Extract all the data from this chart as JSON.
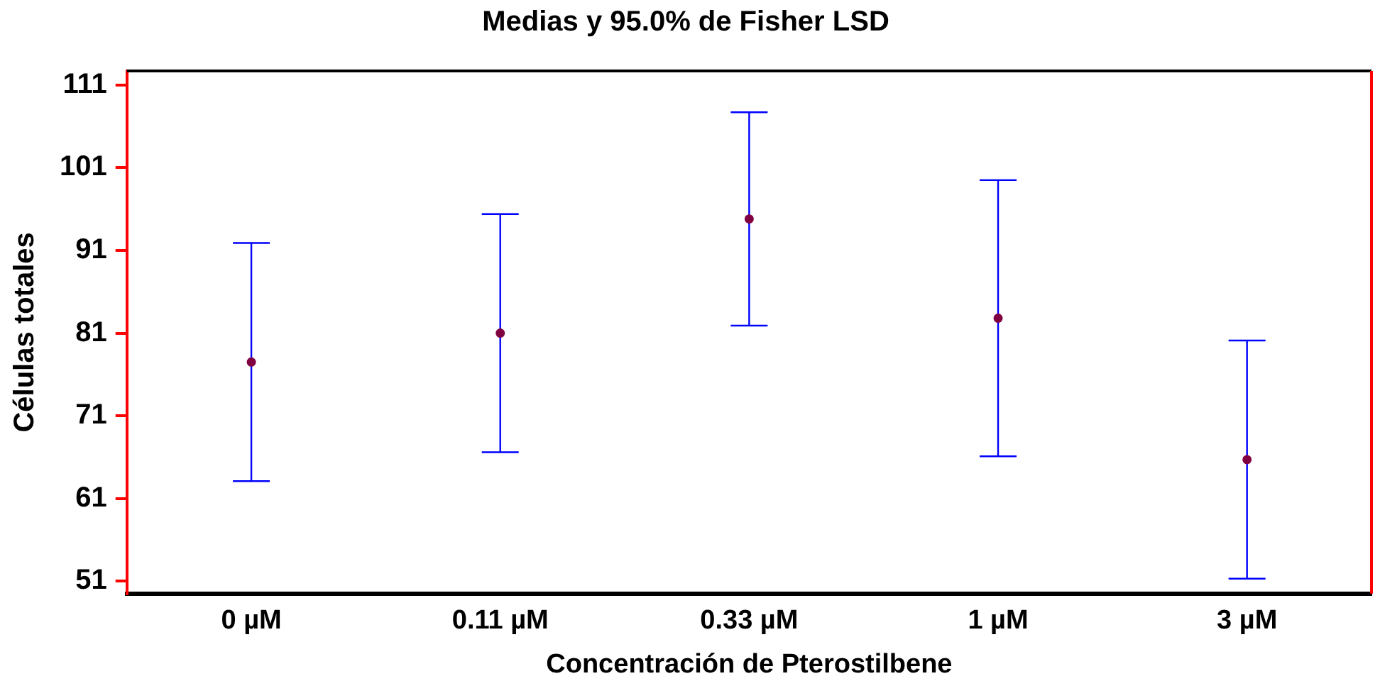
{
  "chart_data": {
    "type": "scatter",
    "title": "Medias y 95.0% de Fisher LSD",
    "xlabel": "Concentración de Pterostilbene",
    "ylabel": "Células totales",
    "categories": [
      "0 µM",
      "0.11 µM",
      "0.33 µM",
      "1 µM",
      "3 µM"
    ],
    "series": [
      {
        "color": "#800040",
        "values": [
          77.5,
          81.0,
          94.8,
          82.8,
          65.7
        ],
        "errors": [
          14.4,
          14.4,
          12.9,
          16.7,
          14.4
        ]
      }
    ],
    "marker": "circle",
    "grid": false,
    "legend": false,
    "ylim": [
      49.5,
      112.7
    ],
    "yticks": [
      51,
      61,
      71,
      81,
      91,
      101,
      111
    ]
  }
}
